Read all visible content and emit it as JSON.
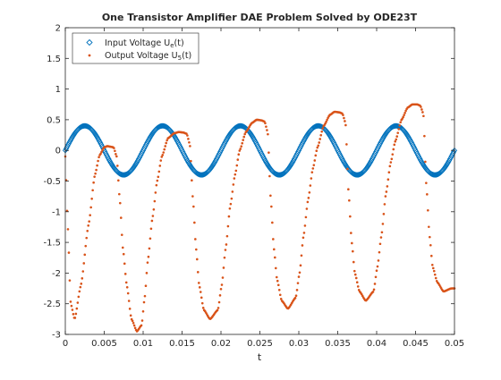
{
  "chart_data": {
    "type": "scatter",
    "title": "One Transistor Amplifier DAE Problem Solved by ODE23T",
    "xlabel": "t",
    "ylabel": "",
    "xlim": [
      0,
      0.05
    ],
    "ylim": [
      -3,
      2
    ],
    "x_ticks": [
      "0",
      "0.005",
      "0.01",
      "0.015",
      "0.02",
      "0.025",
      "0.03",
      "0.035",
      "0.04",
      "0.045",
      "0.05"
    ],
    "y_ticks": [
      "2",
      "1.5",
      "1",
      "0.5",
      "0",
      "-0.5",
      "-1",
      "-1.5",
      "-2",
      "-2.5",
      "-3"
    ],
    "grid": false,
    "legend_position": "top-left",
    "legend": {
      "input": {
        "main": "Input Voltage U",
        "sub": "e",
        "tail": "(t)"
      },
      "output": {
        "main": "Output Voltage U",
        "sub": "5",
        "tail": "(t)"
      }
    },
    "series": [
      {
        "key": "input",
        "marker": "diamond",
        "color": "#0072BD",
        "amplitude": 0.4,
        "frequency_hz": 100,
        "t_range": [
          0,
          0.05
        ]
      },
      {
        "key": "output",
        "marker": "point",
        "color": "#D95319",
        "t": [
          0,
          0.0003,
          0.0007,
          0.0012,
          0.002,
          0.003,
          0.0038,
          0.0044,
          0.005,
          0.0054,
          0.0058,
          0.0062,
          0.0066,
          0.007,
          0.0074,
          0.0079,
          0.0085,
          0.0092,
          0.0098,
          0.0102,
          0.0106,
          0.0112,
          0.0118,
          0.0124,
          0.0132,
          0.014,
          0.0146,
          0.0152,
          0.0156,
          0.016,
          0.0164,
          0.0168,
          0.0172,
          0.0178,
          0.0186,
          0.0196,
          0.0201,
          0.0206,
          0.0212,
          0.0218,
          0.0224,
          0.0232,
          0.024,
          0.0246,
          0.0252,
          0.0256,
          0.026,
          0.0264,
          0.0268,
          0.0272,
          0.0278,
          0.0286,
          0.0296,
          0.0301,
          0.0306,
          0.0312,
          0.0318,
          0.0324,
          0.0332,
          0.034,
          0.0346,
          0.0352,
          0.0356,
          0.036,
          0.0364,
          0.0368,
          0.0372,
          0.0378,
          0.0386,
          0.0396,
          0.0401,
          0.0406,
          0.0412,
          0.0418,
          0.0424,
          0.0432,
          0.044,
          0.0446,
          0.0452,
          0.0456,
          0.046,
          0.0464,
          0.0468,
          0.0472,
          0.0478,
          0.0486,
          0.0496,
          0.05
        ],
        "y": [
          -0.1,
          -1.2,
          -2.5,
          -2.75,
          -2.2,
          -1.2,
          -0.4,
          -0.08,
          0.05,
          0.07,
          0.06,
          0.05,
          -0.1,
          -0.8,
          -1.6,
          -2.2,
          -2.75,
          -2.95,
          -2.85,
          -2.4,
          -1.8,
          -1.1,
          -0.5,
          -0.1,
          0.2,
          0.28,
          0.3,
          0.29,
          0.27,
          0.1,
          -0.8,
          -1.6,
          -2.2,
          -2.6,
          -2.75,
          -2.6,
          -2.2,
          -1.6,
          -0.9,
          -0.4,
          0.0,
          0.3,
          0.45,
          0.5,
          0.49,
          0.47,
          0.3,
          -0.8,
          -1.6,
          -2.1,
          -2.45,
          -2.58,
          -2.4,
          -2.0,
          -1.4,
          -0.8,
          -0.3,
          0.05,
          0.4,
          0.58,
          0.63,
          0.62,
          0.6,
          0.45,
          -0.7,
          -1.5,
          -2.0,
          -2.3,
          -2.45,
          -2.3,
          -1.9,
          -1.4,
          -0.7,
          -0.2,
          0.15,
          0.5,
          0.7,
          0.75,
          0.75,
          0.73,
          0.6,
          -0.6,
          -1.4,
          -1.9,
          -2.15,
          -2.3,
          -2.25,
          -2.25
        ]
      }
    ]
  }
}
